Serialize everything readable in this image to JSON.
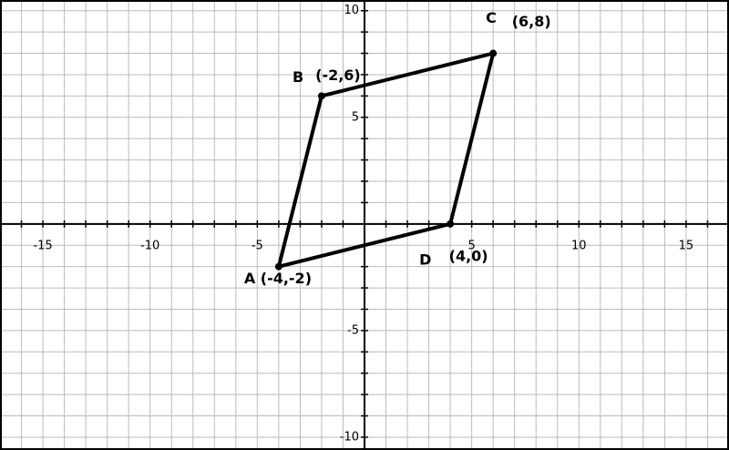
{
  "chart_data": {
    "type": "polygon",
    "x": [
      -4,
      -2,
      6,
      4
    ],
    "y": [
      -2,
      6,
      8,
      0
    ],
    "point_names": [
      "A",
      "B",
      "C",
      "D"
    ],
    "point_labels": [
      "(-4,-2)",
      "(-2,6)",
      "(6,8)",
      "(4,0)"
    ],
    "color": "#000000",
    "xlim": [
      -17,
      17
    ],
    "ylim": [
      -10.6,
      10.5
    ],
    "xticks": [
      -15,
      -10,
      -5,
      5,
      10,
      15
    ],
    "yticks": [
      -10,
      -5,
      5,
      10
    ],
    "xgrid": [
      -16,
      -15,
      -14,
      -13,
      -12,
      -11,
      -10,
      -9,
      -8,
      -7,
      -6,
      -5,
      -4,
      -3,
      -2,
      -1,
      0,
      1,
      2,
      3,
      4,
      5,
      6,
      7,
      8,
      9,
      10,
      11,
      12,
      13,
      14,
      15,
      16
    ],
    "ygrid": [
      -10,
      -9,
      -8,
      -7,
      -6,
      -5,
      -4,
      -3,
      -2,
      -1,
      0,
      1,
      2,
      3,
      4,
      5,
      6,
      7,
      8,
      9,
      10
    ],
    "grid": true
  }
}
